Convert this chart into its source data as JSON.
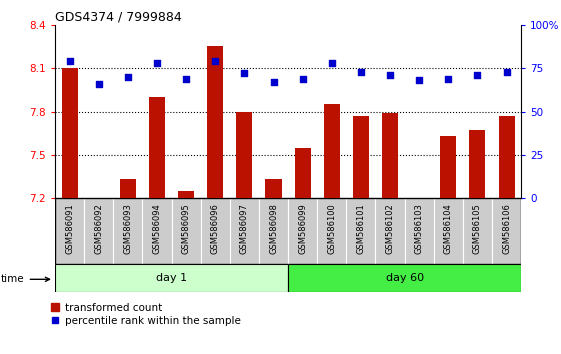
{
  "title": "GDS4374 / 7999884",
  "samples": [
    "GSM586091",
    "GSM586092",
    "GSM586093",
    "GSM586094",
    "GSM586095",
    "GSM586096",
    "GSM586097",
    "GSM586098",
    "GSM586099",
    "GSM586100",
    "GSM586101",
    "GSM586102",
    "GSM586103",
    "GSM586104",
    "GSM586105",
    "GSM586106"
  ],
  "bar_values": [
    8.1,
    7.2,
    7.33,
    7.9,
    7.25,
    8.25,
    7.8,
    7.33,
    7.55,
    7.85,
    7.77,
    7.79,
    7.2,
    7.63,
    7.67,
    7.77
  ],
  "dot_values_pct": [
    79,
    66,
    70,
    78,
    69,
    79,
    72,
    67,
    69,
    78,
    73,
    71,
    68,
    69,
    71,
    73
  ],
  "ylim_left": [
    7.2,
    8.4
  ],
  "ylim_right": [
    0,
    100
  ],
  "yticks_left": [
    7.2,
    7.5,
    7.8,
    8.1,
    8.4
  ],
  "ytick_labels_left": [
    "7.2",
    "7.5",
    "7.8",
    "8.1",
    "8.4"
  ],
  "yticks_right": [
    0,
    25,
    50,
    75,
    100
  ],
  "ytick_labels_right": [
    "0",
    "25",
    "50",
    "75",
    "100%"
  ],
  "bar_color": "#BB1100",
  "dot_color": "#0000CC",
  "day1_count": 8,
  "day60_count": 8,
  "day1_label": "day 1",
  "day60_label": "day 60",
  "day1_color": "#ccffcc",
  "day60_color": "#44ee44",
  "time_label": "time",
  "legend_bar_label": "transformed count",
  "legend_dot_label": "percentile rank within the sample",
  "grid_dotted_values": [
    7.5,
    7.8,
    8.1
  ],
  "sample_bg_color": "#cccccc",
  "title_fontsize": 9
}
